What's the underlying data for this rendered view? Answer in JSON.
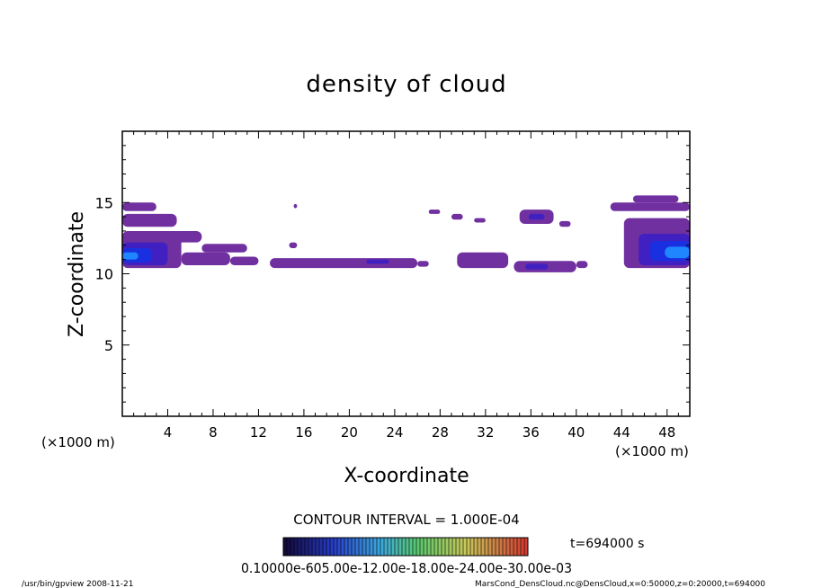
{
  "chart_data": {
    "type": "heatmap",
    "title": "density of cloud",
    "xlabel": "X-coordinate",
    "ylabel": "Z-coordinate",
    "x_unit": "(×1000 m)",
    "xlim": [
      0,
      50
    ],
    "ylim": [
      0,
      20
    ],
    "x_ticks": [
      4,
      8,
      12,
      16,
      20,
      24,
      28,
      32,
      36,
      40,
      44,
      48
    ],
    "y_ticks": [
      5,
      10,
      15
    ],
    "contour_interval": "CONTOUR INTERVAL = 1.000E-04",
    "time_label": "t=694000 s",
    "colorbar_labels": "0.10000e-605.00e-12.00e-18.00e-24.00e-30.00e-03",
    "colors": {
      "level1": "#7030a0",
      "level2": "#4020c0",
      "level3": "#1a30e0",
      "level4": "#1f86ff"
    },
    "cloud_regions": [
      {
        "x": [
          0.0,
          3.0
        ],
        "z": [
          14.4,
          15.0
        ],
        "level": 1
      },
      {
        "x": [
          0.0,
          4.8
        ],
        "z": [
          13.3,
          14.2
        ],
        "level": 1
      },
      {
        "x": [
          0.0,
          7.0
        ],
        "z": [
          12.2,
          13.0
        ],
        "level": 1
      },
      {
        "x": [
          0.0,
          5.2
        ],
        "z": [
          10.4,
          12.6
        ],
        "level": 1
      },
      {
        "x": [
          0.0,
          4.0
        ],
        "z": [
          10.6,
          12.2
        ],
        "level": 2
      },
      {
        "x": [
          0.0,
          2.6
        ],
        "z": [
          10.8,
          11.8
        ],
        "level": 3
      },
      {
        "x": [
          0.0,
          1.4
        ],
        "z": [
          11.0,
          11.5
        ],
        "level": 4
      },
      {
        "x": [
          5.2,
          9.5
        ],
        "z": [
          10.6,
          11.5
        ],
        "level": 1
      },
      {
        "x": [
          7.0,
          11.0
        ],
        "z": [
          11.5,
          12.1
        ],
        "level": 1
      },
      {
        "x": [
          9.5,
          12.0
        ],
        "z": [
          10.6,
          11.2
        ],
        "level": 1
      },
      {
        "x": [
          13.0,
          26.0
        ],
        "z": [
          10.4,
          11.1
        ],
        "level": 1
      },
      {
        "x": [
          21.5,
          23.5
        ],
        "z": [
          10.7,
          11.0
        ],
        "level": 2
      },
      {
        "x": [
          14.7,
          15.4
        ],
        "z": [
          11.8,
          12.2
        ],
        "level": 1
      },
      {
        "x": [
          15.1,
          15.4
        ],
        "z": [
          14.6,
          14.9
        ],
        "level": 1
      },
      {
        "x": [
          26.0,
          27.0
        ],
        "z": [
          10.5,
          10.9
        ],
        "level": 1
      },
      {
        "x": [
          29.0,
          30.0
        ],
        "z": [
          13.8,
          14.2
        ],
        "level": 1
      },
      {
        "x": [
          31.0,
          32.0
        ],
        "z": [
          13.6,
          13.9
        ],
        "level": 1
      },
      {
        "x": [
          27.0,
          28.0
        ],
        "z": [
          14.2,
          14.5
        ],
        "level": 1
      },
      {
        "x": [
          29.5,
          34.0
        ],
        "z": [
          10.4,
          11.5
        ],
        "level": 1
      },
      {
        "x": [
          34.5,
          40.0
        ],
        "z": [
          10.1,
          10.9
        ],
        "level": 1
      },
      {
        "x": [
          35.5,
          37.5
        ],
        "z": [
          10.3,
          10.7
        ],
        "level": 2
      },
      {
        "x": [
          35.0,
          38.0
        ],
        "z": [
          13.5,
          14.5
        ],
        "level": 1
      },
      {
        "x": [
          35.8,
          37.2
        ],
        "z": [
          13.8,
          14.2
        ],
        "level": 2
      },
      {
        "x": [
          38.5,
          39.5
        ],
        "z": [
          13.3,
          13.7
        ],
        "level": 1
      },
      {
        "x": [
          40.0,
          41.0
        ],
        "z": [
          10.4,
          10.9
        ],
        "level": 1
      },
      {
        "x": [
          43.0,
          50.0
        ],
        "z": [
          14.4,
          15.0
        ],
        "level": 1
      },
      {
        "x": [
          45.0,
          49.0
        ],
        "z": [
          15.0,
          15.5
        ],
        "level": 1
      },
      {
        "x": [
          44.2,
          50.0
        ],
        "z": [
          10.4,
          13.9
        ],
        "level": 1
      },
      {
        "x": [
          45.5,
          50.0
        ],
        "z": [
          10.6,
          12.8
        ],
        "level": 2
      },
      {
        "x": [
          46.5,
          50.0
        ],
        "z": [
          10.9,
          12.3
        ],
        "level": 3
      },
      {
        "x": [
          47.8,
          50.0
        ],
        "z": [
          11.1,
          11.9
        ],
        "level": 4
      }
    ]
  },
  "footer": {
    "left": "/usr/bin/gpview   2008-11-21",
    "right": "MarsCond_DensCloud.nc@DensCloud,x=0:50000,z=0:20000,t=694000"
  }
}
